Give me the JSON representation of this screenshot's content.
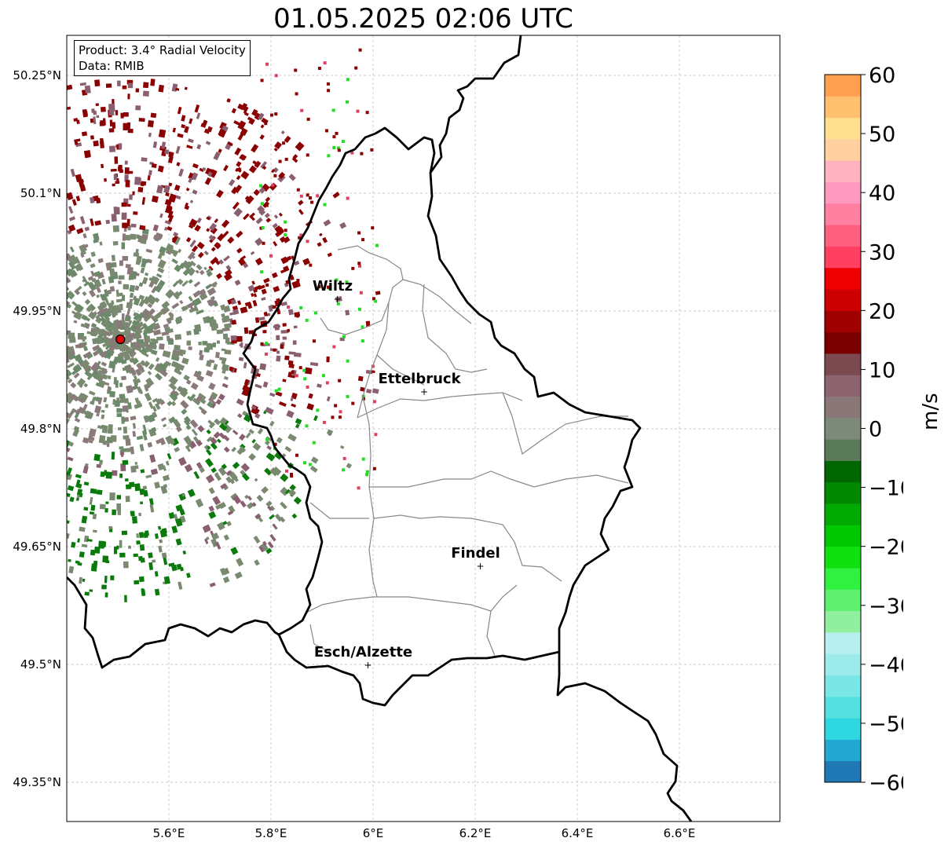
{
  "title": "01.05.2025 02:06 UTC",
  "infobox": {
    "product": "Product: 3.4° Radial Velocity",
    "data": "Data: RMIB"
  },
  "lat_ticks": [
    "50.25°N",
    "50.1°N",
    "49.95°N",
    "49.8°N",
    "49.65°N",
    "49.5°N",
    "49.35°N"
  ],
  "lon_ticks": [
    "5.6°E",
    "5.8°E",
    "6°E",
    "6.2°E",
    "6.4°E",
    "6.6°E"
  ],
  "cities": [
    {
      "name": "Wiltz",
      "lon": 5.93,
      "lat": 49.966
    },
    {
      "name": "Ettelbruck",
      "lon": 6.1,
      "lat": 49.848
    },
    {
      "name": "Findel",
      "lon": 6.21,
      "lat": 49.626
    },
    {
      "name": "Esch/Alzette",
      "lon": 5.99,
      "lat": 49.5
    }
  ],
  "radar_site": {
    "lon": 5.505,
    "lat": 49.914
  },
  "colorbar": {
    "label": "m/s",
    "min": -60,
    "max": 60,
    "ticks": [
      "60",
      "50",
      "40",
      "30",
      "20",
      "10",
      "0",
      "−10",
      "−20",
      "−30",
      "−40",
      "−50",
      "−60"
    ],
    "colors": [
      "#1f77b4",
      "#22a8d0",
      "#2fd8e0",
      "#55e0e0",
      "#7ae6e6",
      "#9ceaea",
      "#b8eeee",
      "#90f0a0",
      "#60f070",
      "#30f040",
      "#10e010",
      "#00c800",
      "#00aa00",
      "#008800",
      "#006600",
      "#5a7a5a",
      "#7d8a7a",
      "#8a7777",
      "#8b6470",
      "#7a4a50",
      "#7a0000",
      "#a00000",
      "#cc0000",
      "#ee0000",
      "#ff4060",
      "#ff6080",
      "#ff80a0",
      "#ff99c0",
      "#ffb3c0",
      "#ffd0a0",
      "#ffe090",
      "#ffc070",
      "#ffa050"
    ]
  },
  "velocity_colors": {
    "outbound_dark": "#8b0000",
    "outbound_light": "#8a6070",
    "near_zero": "#7a8a70",
    "inbound": "#0a7a0a",
    "inbound_bright": "#22dd22",
    "radar_marker": "#e00000"
  }
}
